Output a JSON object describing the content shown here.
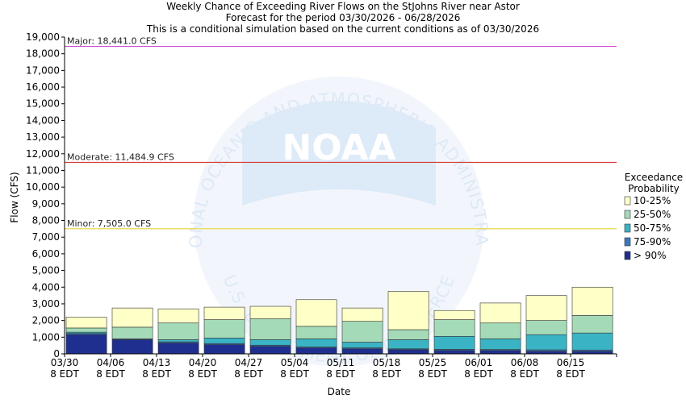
{
  "titles": {
    "line1": "Weekly Chance of Exceeding River Flows on the StJohns River near Astor",
    "line2": "Forecast for the period 03/30/2026 - 06/28/2026",
    "line3": "This is a conditional simulation based on the current conditions as of 03/30/2026"
  },
  "watermark": {
    "ring_text_top": "NATIONAL OCEANIC AND ATMOSPHERIC ADMINISTRATION",
    "ring_text_bottom": "U.S. DEPARTMENT OF COMMERCE",
    "logo_text": "NOAA"
  },
  "chart_data": {
    "type": "bar",
    "stacked": true,
    "xlabel": "Date",
    "ylabel": "Flow (CFS)",
    "ylim": [
      0,
      19000
    ],
    "yticks": [
      0,
      1000,
      2000,
      3000,
      4000,
      5000,
      6000,
      7000,
      8000,
      9000,
      10000,
      11000,
      12000,
      13000,
      14000,
      15000,
      16000,
      17000,
      18000,
      19000
    ],
    "grid": false,
    "legend_position": "right",
    "categories": [
      [
        "03/30",
        "8 EDT"
      ],
      [
        "04/06",
        "8 EDT"
      ],
      [
        "04/13",
        "8 EDT"
      ],
      [
        "04/20",
        "8 EDT"
      ],
      [
        "04/27",
        "8 EDT"
      ],
      [
        "05/04",
        "8 EDT"
      ],
      [
        "05/11",
        "8 EDT"
      ],
      [
        "05/18",
        "8 EDT"
      ],
      [
        "05/25",
        "8 EDT"
      ],
      [
        "06/01",
        "8 EDT"
      ],
      [
        "06/08",
        "8 EDT"
      ],
      [
        "06/15",
        "8 EDT"
      ]
    ],
    "legend_title": [
      "Exceedance",
      "Probability"
    ],
    "series": [
      {
        "name": "> 90%",
        "color": "#1f2f8f",
        "values": [
          1150,
          850,
          650,
          550,
          450,
          350,
          300,
          250,
          200,
          200,
          150,
          150
        ]
      },
      {
        "name": "75-90%",
        "color": "#3a78c0",
        "values": [
          1220,
          900,
          720,
          620,
          520,
          420,
          360,
          300,
          270,
          260,
          240,
          230
        ]
      },
      {
        "name": "50-75%",
        "color": "#3ab4c4",
        "values": [
          1300,
          900,
          850,
          950,
          850,
          900,
          700,
          850,
          1050,
          900,
          1150,
          1250
        ]
      },
      {
        "name": "25-50%",
        "color": "#a4dab8",
        "values": [
          1550,
          1600,
          1850,
          2050,
          2100,
          1650,
          1950,
          1450,
          2050,
          1850,
          2000,
          2300
        ]
      },
      {
        "name": "10-25%",
        "color": "#ffffc8",
        "values": [
          2200,
          2750,
          2700,
          2800,
          2850,
          3250,
          2750,
          3750,
          2600,
          3050,
          3500,
          4000
        ]
      }
    ],
    "thresholds": [
      {
        "label": "Major: 18,441.0 CFS",
        "value": 18441.0,
        "color": "#d34ad3"
      },
      {
        "label": "Moderate: 11,484.9 CFS",
        "value": 11484.9,
        "color": "#d43a3a"
      },
      {
        "label": "Minor: 7,505.0 CFS",
        "value": 7505.0,
        "color": "#e8d84a"
      }
    ]
  }
}
